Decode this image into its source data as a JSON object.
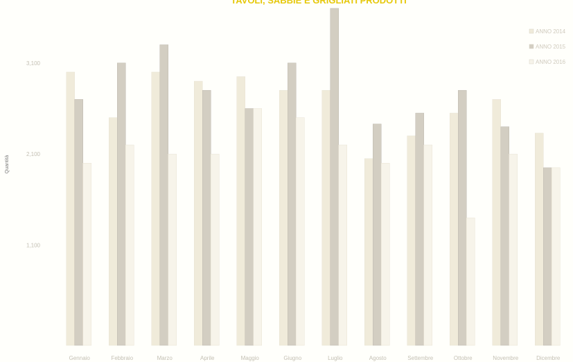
{
  "chart_data": {
    "type": "bar",
    "title": "TAVOLI, SABBIE E GRIGLIATI PRODOTTI",
    "ylabel": "Quantità",
    "xlabel": "",
    "categories": [
      "Gennaio",
      "Febbraio",
      "Marzo",
      "Aprile",
      "Maggio",
      "Giugno",
      "Luglio",
      "Agosto",
      "Settembre",
      "Ottobre",
      "Novembre",
      "Dicembre"
    ],
    "series": [
      {
        "name": "ANNO 2014",
        "color": "#f0ebda",
        "values": [
          3000,
          2500,
          3000,
          2900,
          2950,
          2800,
          2800,
          2050,
          2300,
          2550,
          2700,
          2330
        ]
      },
      {
        "name": "ANNO 2015",
        "color": "#d3cec2",
        "values": [
          2700,
          3100,
          3300,
          2800,
          2600,
          3100,
          3700,
          2430,
          2550,
          2800,
          2400,
          1950
        ]
      },
      {
        "name": "ANNO 2016",
        "color": "#f7f4ea",
        "values": [
          2000,
          2200,
          2100,
          2100,
          2600,
          2500,
          2200,
          2000,
          2200,
          1400,
          2100,
          1950
        ]
      }
    ],
    "yticks": [
      "3,100",
      "2,100",
      "1,100"
    ],
    "ytick_values": [
      3100,
      2100,
      1100
    ],
    "ylim": [
      0,
      3700
    ],
    "grid": false,
    "legend": "top-right"
  }
}
